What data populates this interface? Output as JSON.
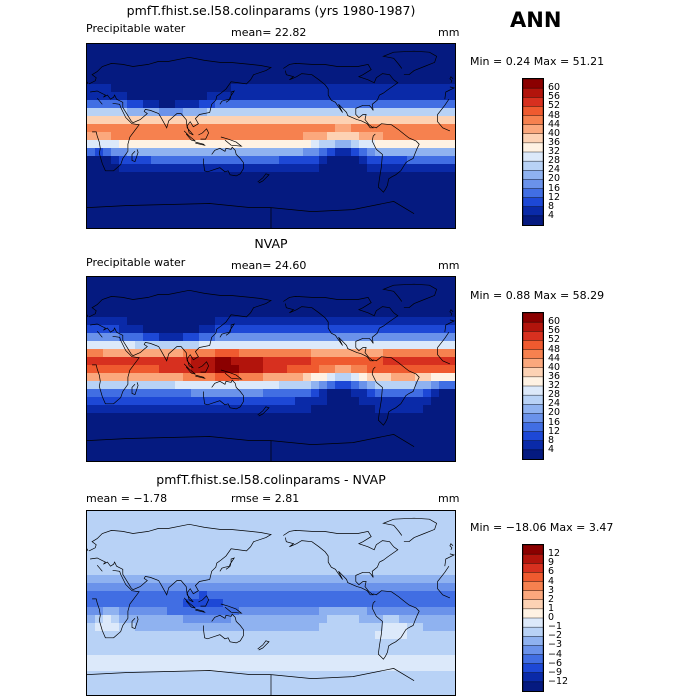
{
  "season": "ANN",
  "panels": [
    {
      "title": "pmfT.fhist.se.l58.colinparams (yrs 1980-1987)",
      "left_label": "Precipitable water",
      "mean_text": "mean=  22.82",
      "units": "mm",
      "minmax": "Min =    0.24  Max =  51.21",
      "colorbar_labels": [
        "60",
        "56",
        "52",
        "48",
        "44",
        "40",
        "36",
        "32",
        "28",
        "24",
        "20",
        "16",
        "12",
        "8",
        "4"
      ],
      "colorbar_colors": [
        "#8b0000",
        "#b2140c",
        "#d7301f",
        "#ef5a2f",
        "#f6814f",
        "#fba87d",
        "#fdd2b4",
        "#fff2e3",
        "#dce9fa",
        "#b8d2f6",
        "#8fb2f0",
        "#6a92ea",
        "#416ee3",
        "#1d48d6",
        "#0a2aa8",
        "#051a80"
      ],
      "field": "pw_model"
    },
    {
      "title": "NVAP",
      "left_label": "Precipitable water",
      "mean_text": "mean=  24.60",
      "units": "mm",
      "minmax": "Min =    0.88  Max =  58.29",
      "colorbar_labels": [
        "60",
        "56",
        "52",
        "48",
        "44",
        "40",
        "36",
        "32",
        "28",
        "24",
        "20",
        "16",
        "12",
        "8",
        "4"
      ],
      "colorbar_colors": [
        "#8b0000",
        "#b2140c",
        "#d7301f",
        "#ef5a2f",
        "#f6814f",
        "#fba87d",
        "#fdd2b4",
        "#fff2e3",
        "#dce9fa",
        "#b8d2f6",
        "#8fb2f0",
        "#6a92ea",
        "#416ee3",
        "#1d48d6",
        "#0a2aa8",
        "#051a80"
      ],
      "field": "pw_obs"
    },
    {
      "title": "pmfT.fhist.se.l58.colinparams - NVAP",
      "left_label": "mean =   −1.78",
      "mean_text": "rmse =    2.81",
      "units": "mm",
      "minmax": "Min = −18.06  Max =    3.47",
      "colorbar_labels": [
        "12",
        "9",
        "6",
        "4",
        "3",
        "2",
        "1",
        "0",
        "−1",
        "−2",
        "−3",
        "−4",
        "−6",
        "−9",
        "−12"
      ],
      "colorbar_colors": [
        "#8b0000",
        "#b2140c",
        "#d7301f",
        "#ef5a2f",
        "#f6814f",
        "#fba87d",
        "#fdd2b4",
        "#fff2e3",
        "#dce9fa",
        "#b8d2f6",
        "#8fb2f0",
        "#6a92ea",
        "#416ee3",
        "#1d48d6",
        "#0a2aa8",
        "#051a80"
      ],
      "field": "diff"
    }
  ],
  "chart_data": [
    {
      "type": "heatmap",
      "title": "pmfT.fhist.se.l58.colinparams (yrs 1980-1987)",
      "variable": "Precipitable water",
      "units": "mm",
      "mean": 22.82,
      "min": 0.24,
      "max": 51.21,
      "contour_levels": [
        4,
        8,
        12,
        16,
        20,
        24,
        28,
        32,
        36,
        40,
        44,
        48,
        52,
        56,
        60
      ]
    },
    {
      "type": "heatmap",
      "title": "NVAP",
      "variable": "Precipitable water",
      "units": "mm",
      "mean": 24.6,
      "min": 0.88,
      "max": 58.29,
      "contour_levels": [
        4,
        8,
        12,
        16,
        20,
        24,
        28,
        32,
        36,
        40,
        44,
        48,
        52,
        56,
        60
      ]
    },
    {
      "type": "heatmap",
      "title": "pmfT.fhist.se.l58.colinparams - NVAP",
      "units": "mm",
      "mean": -1.78,
      "rmse": 2.81,
      "min": -18.06,
      "max": 3.47,
      "contour_levels": [
        -12,
        -9,
        -6,
        -4,
        -3,
        -2,
        -1,
        0,
        1,
        2,
        3,
        4,
        6,
        9,
        12
      ]
    }
  ]
}
